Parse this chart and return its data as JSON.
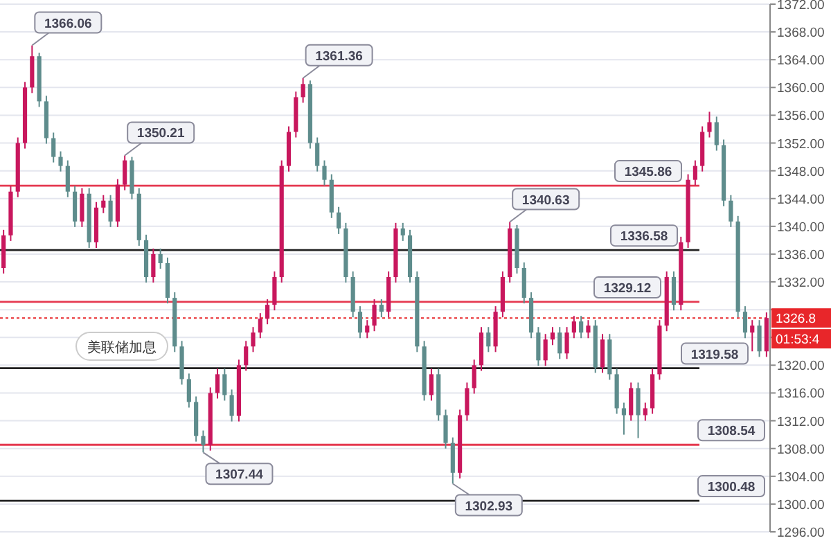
{
  "chart_data": {
    "type": "candlestick",
    "categories": [
      null,
      null,
      null,
      null,
      null,
      null,
      null,
      null,
      null,
      null,
      null,
      null,
      null,
      null,
      null,
      null,
      null,
      null,
      null,
      null,
      null,
      null,
      null,
      null,
      null,
      null,
      null,
      null,
      null,
      null,
      null,
      null,
      null,
      null,
      null,
      null,
      null,
      null,
      null,
      null,
      null,
      null,
      null,
      null,
      null,
      null,
      null,
      null,
      null,
      null,
      null,
      null,
      null,
      null,
      null,
      null,
      null,
      null,
      null,
      null,
      null,
      null,
      null,
      null,
      null,
      null,
      null,
      null,
      null,
      null,
      null,
      null,
      null,
      null,
      null,
      null,
      null,
      null,
      null,
      null,
      null,
      null,
      null,
      null,
      null,
      null,
      null,
      null,
      null,
      null,
      null,
      null,
      null,
      null,
      null,
      null,
      null,
      null,
      null,
      null,
      null,
      null,
      null,
      null,
      null,
      null,
      null,
      null
    ],
    "ohlc": [
      [
        1334,
        1339.5,
        1333.2,
        1338.7
      ],
      [
        1338.7,
        1345.8,
        1337.9,
        1345
      ],
      [
        1345,
        1352.8,
        1344.2,
        1352
      ],
      [
        1352,
        1360.8,
        1351.2,
        1360
      ],
      [
        1360,
        1366.06,
        1359.2,
        1364.5
      ],
      [
        1364.5,
        1365,
        1357.2,
        1358
      ],
      [
        1358,
        1358.8,
        1351.9,
        1352.7
      ],
      [
        1352.7,
        1353.5,
        1349.2,
        1350
      ],
      [
        1350,
        1350.8,
        1347.9,
        1348.7
      ],
      [
        1348.7,
        1349.5,
        1344.2,
        1345
      ],
      [
        1345,
        1345.8,
        1339.9,
        1340.7
      ],
      [
        1340.7,
        1345.5,
        1339.9,
        1344.7
      ],
      [
        1344.7,
        1345.5,
        1336.9,
        1337.7
      ],
      [
        1337.7,
        1343.5,
        1336.9,
        1342.7
      ],
      [
        1342.7,
        1344.5,
        1341.9,
        1343.7
      ],
      [
        1343.7,
        1344.5,
        1339.9,
        1340.7
      ],
      [
        1340.7,
        1346.8,
        1339.9,
        1346
      ],
      [
        1346,
        1350.21,
        1345.2,
        1349.5
      ],
      [
        1349.5,
        1350,
        1343.9,
        1344.7
      ],
      [
        1344.7,
        1345.5,
        1337.2,
        1338
      ],
      [
        1338,
        1338.8,
        1331.9,
        1332.7
      ],
      [
        1332.7,
        1336.8,
        1331.9,
        1336
      ],
      [
        1336,
        1336.8,
        1333.9,
        1334.7
      ],
      [
        1334.7,
        1335.5,
        1328.9,
        1329.7
      ],
      [
        1329.7,
        1330.5,
        1321.9,
        1322.7
      ],
      [
        1322.7,
        1323.5,
        1317.2,
        1318
      ],
      [
        1318,
        1318.8,
        1313.9,
        1314.7
      ],
      [
        1314.7,
        1315.5,
        1309,
        1309.8
      ],
      [
        1309.8,
        1310.6,
        1307.44,
        1308.5
      ],
      [
        1308.5,
        1316.8,
        1307.7,
        1316
      ],
      [
        1316,
        1319.5,
        1315.2,
        1318.7
      ],
      [
        1318.7,
        1319.5,
        1314.9,
        1315.7
      ],
      [
        1315.7,
        1316.5,
        1311.9,
        1312.7
      ],
      [
        1312.7,
        1320.8,
        1311.9,
        1320
      ],
      [
        1320,
        1323.5,
        1319.2,
        1322.7
      ],
      [
        1322.7,
        1325.5,
        1321.9,
        1324.7
      ],
      [
        1324.7,
        1327.5,
        1323.9,
        1326.7
      ],
      [
        1326.7,
        1329.5,
        1325.9,
        1328.7
      ],
      [
        1328.7,
        1333.5,
        1327.9,
        1332.7
      ],
      [
        1332.7,
        1349.5,
        1331.9,
        1348.7
      ],
      [
        1348.7,
        1354.4,
        1347.9,
        1353.6
      ],
      [
        1353.6,
        1359.4,
        1352.8,
        1358.6
      ],
      [
        1358.6,
        1361.36,
        1357.8,
        1360.5
      ],
      [
        1360.5,
        1361,
        1351.2,
        1352
      ],
      [
        1352,
        1352.8,
        1347.9,
        1348.7
      ],
      [
        1348.7,
        1349.5,
        1345.9,
        1346.7
      ],
      [
        1346.7,
        1347.5,
        1341.2,
        1342
      ],
      [
        1342,
        1342.8,
        1338.9,
        1339.7
      ],
      [
        1339.7,
        1340.5,
        1331.9,
        1332.7
      ],
      [
        1332.7,
        1333.5,
        1326.9,
        1327.7
      ],
      [
        1327.7,
        1328.5,
        1323.9,
        1324.7
      ],
      [
        1324.7,
        1326.5,
        1323.9,
        1325.7
      ],
      [
        1325.7,
        1329.5,
        1324.9,
        1328.7
      ],
      [
        1328.7,
        1329.5,
        1326.9,
        1327.7
      ],
      [
        1327.7,
        1333.5,
        1326.9,
        1332.7
      ],
      [
        1332.7,
        1340.5,
        1331.9,
        1339.7
      ],
      [
        1339.7,
        1340.5,
        1337.9,
        1338.7
      ],
      [
        1338.7,
        1339.5,
        1331.9,
        1332.7
      ],
      [
        1332.7,
        1333.5,
        1321.9,
        1322.7
      ],
      [
        1322.7,
        1323.5,
        1314.9,
        1315.7
      ],
      [
        1315.7,
        1319.5,
        1314.9,
        1318.7
      ],
      [
        1318.7,
        1319.5,
        1312,
        1312.8
      ],
      [
        1312.8,
        1313.6,
        1308,
        1308.8
      ],
      [
        1308.8,
        1309.6,
        1302.93,
        1304.5
      ],
      [
        1304.5,
        1313.6,
        1303.7,
        1312.8
      ],
      [
        1312.8,
        1317.5,
        1312,
        1316.7
      ],
      [
        1316.7,
        1320.8,
        1315.9,
        1320
      ],
      [
        1320,
        1325.5,
        1319.2,
        1324.7
      ],
      [
        1324.7,
        1325.5,
        1321.9,
        1322.7
      ],
      [
        1322.7,
        1328.5,
        1321.9,
        1327.7
      ],
      [
        1327.7,
        1333.5,
        1326.9,
        1332.7
      ],
      [
        1332.7,
        1340.63,
        1331.9,
        1339.7
      ],
      [
        1339.7,
        1340.2,
        1333.2,
        1334
      ],
      [
        1334,
        1334.8,
        1328.9,
        1329.7
      ],
      [
        1329.7,
        1330.5,
        1323.9,
        1324.7
      ],
      [
        1324.7,
        1325.5,
        1319.9,
        1320.7
      ],
      [
        1320.7,
        1324.5,
        1319.9,
        1323.7
      ],
      [
        1323.7,
        1325.5,
        1322.9,
        1324.7
      ],
      [
        1324.7,
        1325.5,
        1320.9,
        1321.7
      ],
      [
        1321.7,
        1325.5,
        1320.9,
        1324.7
      ],
      [
        1324.7,
        1327.1,
        1323.9,
        1326.3
      ],
      [
        1326.3,
        1327.1,
        1323.9,
        1324.7
      ],
      [
        1324.7,
        1326.5,
        1323.9,
        1325.7
      ],
      [
        1325.7,
        1326.5,
        1318.9,
        1319.7
      ],
      [
        1319.7,
        1324.5,
        1318.9,
        1323.7
      ],
      [
        1323.7,
        1324.5,
        1317.9,
        1318.7
      ],
      [
        1318.7,
        1319.5,
        1313,
        1313.8
      ],
      [
        1313.8,
        1314.6,
        1310,
        1312.8
      ],
      [
        1312.8,
        1317.5,
        1312,
        1316.7
      ],
      [
        1316.7,
        1317.5,
        1309.5,
        1312.8
      ],
      [
        1312.8,
        1314.6,
        1312,
        1313.8
      ],
      [
        1313.8,
        1319.5,
        1313,
        1318.7
      ],
      [
        1318.7,
        1326.5,
        1317.9,
        1325.7
      ],
      [
        1325.7,
        1333.5,
        1324.9,
        1332.7
      ],
      [
        1332.7,
        1333.5,
        1327.9,
        1328.7
      ],
      [
        1328.7,
        1338.5,
        1327.9,
        1337.7
      ],
      [
        1337.7,
        1347.5,
        1336.9,
        1346.7
      ],
      [
        1346.7,
        1349.5,
        1345.9,
        1348.7
      ],
      [
        1348.7,
        1354.4,
        1347.9,
        1353.6
      ],
      [
        1353.6,
        1356.5,
        1352.8,
        1355
      ],
      [
        1355,
        1355.8,
        1350.9,
        1351.7
      ],
      [
        1351.7,
        1352.5,
        1342.9,
        1343.7
      ],
      [
        1343.7,
        1344.5,
        1339.9,
        1340.7
      ],
      [
        1340.7,
        1341.5,
        1326.9,
        1327.7
      ],
      [
        1327.7,
        1328.5,
        1323.9,
        1324.7
      ],
      [
        1324.7,
        1326.5,
        1322,
        1325.7
      ],
      [
        1325.7,
        1326.5,
        1321.2,
        1322
      ],
      [
        1322,
        1327.6,
        1321.2,
        1326.8
      ]
    ],
    "colors": [
      "#c8175d",
      "#c8175d",
      "#c8175d",
      "#c8175d",
      "#c8175d",
      "#5e8c8c",
      "#5e8c8c",
      "#5e8c8c",
      "#5e8c8c",
      "#5e8c8c",
      "#5e8c8c",
      "#c8175d",
      "#5e8c8c",
      "#c8175d",
      "#c8175d",
      "#5e8c8c",
      "#c8175d",
      "#c8175d",
      "#5e8c8c",
      "#5e8c8c",
      "#5e8c8c",
      "#c8175d",
      "#5e8c8c",
      "#5e8c8c",
      "#5e8c8c",
      "#5e8c8c",
      "#5e8c8c",
      "#5e8c8c",
      "#5e8c8c",
      "#c8175d",
      "#c8175d",
      "#5e8c8c",
      "#5e8c8c",
      "#c8175d",
      "#c8175d",
      "#c8175d",
      "#c8175d",
      "#c8175d",
      "#c8175d",
      "#c8175d",
      "#c8175d",
      "#c8175d",
      "#c8175d",
      "#5e8c8c",
      "#5e8c8c",
      "#5e8c8c",
      "#5e8c8c",
      "#5e8c8c",
      "#5e8c8c",
      "#5e8c8c",
      "#5e8c8c",
      "#c8175d",
      "#c8175d",
      "#5e8c8c",
      "#c8175d",
      "#c8175d",
      "#5e8c8c",
      "#5e8c8c",
      "#5e8c8c",
      "#5e8c8c",
      "#c8175d",
      "#5e8c8c",
      "#5e8c8c",
      "#5e8c8c",
      "#c8175d",
      "#c8175d",
      "#c8175d",
      "#c8175d",
      "#5e8c8c",
      "#c8175d",
      "#c8175d",
      "#c8175d",
      "#5e8c8c",
      "#5e8c8c",
      "#5e8c8c",
      "#5e8c8c",
      "#c8175d",
      "#c8175d",
      "#5e8c8c",
      "#c8175d",
      "#c8175d",
      "#5e8c8c",
      "#c8175d",
      "#5e8c8c",
      "#c8175d",
      "#5e8c8c",
      "#5e8c8c",
      "#5e8c8c",
      "#c8175d",
      "#5e8c8c",
      "#c8175d",
      "#c8175d",
      "#c8175d",
      "#c8175d",
      "#5e8c8c",
      "#c8175d",
      "#c8175d",
      "#c8175d",
      "#c8175d",
      "#c8175d",
      "#5e8c8c",
      "#5e8c8c",
      "#5e8c8c",
      "#5e8c8c",
      "#5e8c8c",
      "#c8175d",
      "#5e8c8c",
      "#c8175d"
    ],
    "ylim": [
      1296,
      1372
    ],
    "yticks": [
      {
        "value": 1296,
        "label": "1296.00"
      },
      {
        "value": 1300,
        "label": "1300.00"
      },
      {
        "value": 1304,
        "label": "1304.00"
      },
      {
        "value": 1308,
        "label": "1308.00"
      },
      {
        "value": 1312,
        "label": "1312.00"
      },
      {
        "value": 1316,
        "label": "1316.00"
      },
      {
        "value": 1320,
        "label": "1320.00"
      },
      {
        "value": 1324,
        "label": null
      },
      {
        "value": 1328,
        "label": null
      },
      {
        "value": 1332,
        "label": "1332.00"
      },
      {
        "value": 1336,
        "label": "1336.00"
      },
      {
        "value": 1340,
        "label": "1340.00"
      },
      {
        "value": 1344,
        "label": "1344.00"
      },
      {
        "value": 1348,
        "label": "1348.00"
      },
      {
        "value": 1352,
        "label": "1352.00"
      },
      {
        "value": 1356,
        "label": "1356.00"
      },
      {
        "value": 1360,
        "label": "1360.00"
      },
      {
        "value": 1364,
        "label": "1364.00"
      },
      {
        "value": 1368,
        "label": "1368.00"
      },
      {
        "value": 1372,
        "label": "1372.00"
      }
    ],
    "grid": "y",
    "tick_labels": "y",
    "ref_lines": [
      {
        "axis": "y",
        "value": 1345.86,
        "label": "1345.86",
        "color": "#e53950"
      },
      {
        "axis": "y",
        "value": 1336.58,
        "label": "1336.58",
        "color": "#222222"
      },
      {
        "axis": "y",
        "value": 1329.12,
        "label": "1329.12",
        "color": "#e53950"
      },
      {
        "axis": "y",
        "value": 1319.58,
        "label": "1319.58",
        "color": "#222222"
      },
      {
        "axis": "y",
        "value": 1308.54,
        "label": "1308.54",
        "color": "#e53950"
      },
      {
        "axis": "y",
        "value": 1300.48,
        "label": "1300.48",
        "color": "#222222"
      },
      {
        "axis": "y",
        "value": 1326.8,
        "label": "1326.8",
        "color": "#e8262a",
        "line_style": "dotted"
      }
    ],
    "annotations": [
      "1366.06",
      "1350.21",
      "1361.36",
      "1307.44",
      "1302.93",
      "1340.63",
      "美联储加息",
      "01:53:4"
    ]
  }
}
